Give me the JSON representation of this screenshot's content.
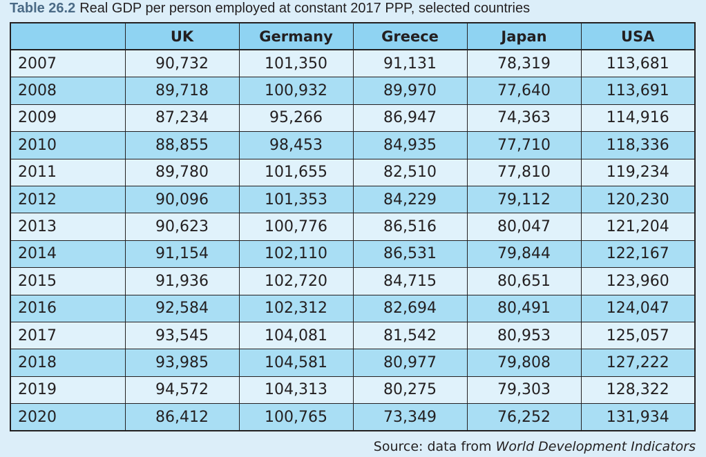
{
  "caption": {
    "number": "Table 26.2",
    "title": "Real GDP per person employed at constant 2017 PPP, selected countries"
  },
  "table": {
    "headers": [
      "",
      "UK",
      "Germany",
      "Greece",
      "Japan",
      "USA"
    ],
    "rows": [
      {
        "year": "2007",
        "values": [
          "90,732",
          "101,350",
          "91,131",
          "78,319",
          "113,681"
        ]
      },
      {
        "year": "2008",
        "values": [
          "89,718",
          "100,932",
          "89,970",
          "77,640",
          "113,691"
        ]
      },
      {
        "year": "2009",
        "values": [
          "87,234",
          "95,266",
          "86,947",
          "74,363",
          "114,916"
        ]
      },
      {
        "year": "2010",
        "values": [
          "88,855",
          "98,453",
          "84,935",
          "77,710",
          "118,336"
        ]
      },
      {
        "year": "2011",
        "values": [
          "89,780",
          "101,655",
          "82,510",
          "77,810",
          "119,234"
        ]
      },
      {
        "year": "2012",
        "values": [
          "90,096",
          "101,353",
          "84,229",
          "79,112",
          "120,230"
        ]
      },
      {
        "year": "2013",
        "values": [
          "90,623",
          "100,776",
          "86,516",
          "80,047",
          "121,204"
        ]
      },
      {
        "year": "2014",
        "values": [
          "91,154",
          "102,110",
          "86,531",
          "79,844",
          "122,167"
        ]
      },
      {
        "year": "2015",
        "values": [
          "91,936",
          "102,720",
          "84,715",
          "80,651",
          "123,960"
        ]
      },
      {
        "year": "2016",
        "values": [
          "92,584",
          "102,312",
          "82,694",
          "80,491",
          "124,047"
        ]
      },
      {
        "year": "2017",
        "values": [
          "93,545",
          "104,081",
          "81,542",
          "80,953",
          "125,057"
        ]
      },
      {
        "year": "2018",
        "values": [
          "93,985",
          "104,581",
          "80,977",
          "79,808",
          "127,222"
        ]
      },
      {
        "year": "2019",
        "values": [
          "94,572",
          "104,313",
          "80,275",
          "79,303",
          "128,322"
        ]
      },
      {
        "year": "2020",
        "values": [
          "86,412",
          "100,765",
          "73,349",
          "76,252",
          "131,934"
        ]
      }
    ]
  },
  "source": {
    "prefix": "Source: data from ",
    "name": "World Development Indicators"
  },
  "colors": {
    "header_bg": "#8fd3f2",
    "row_light": "#e0f2fb",
    "row_dark": "#a9def4",
    "page_bg": "#dceef9",
    "caption_number": "#4a6a86"
  }
}
